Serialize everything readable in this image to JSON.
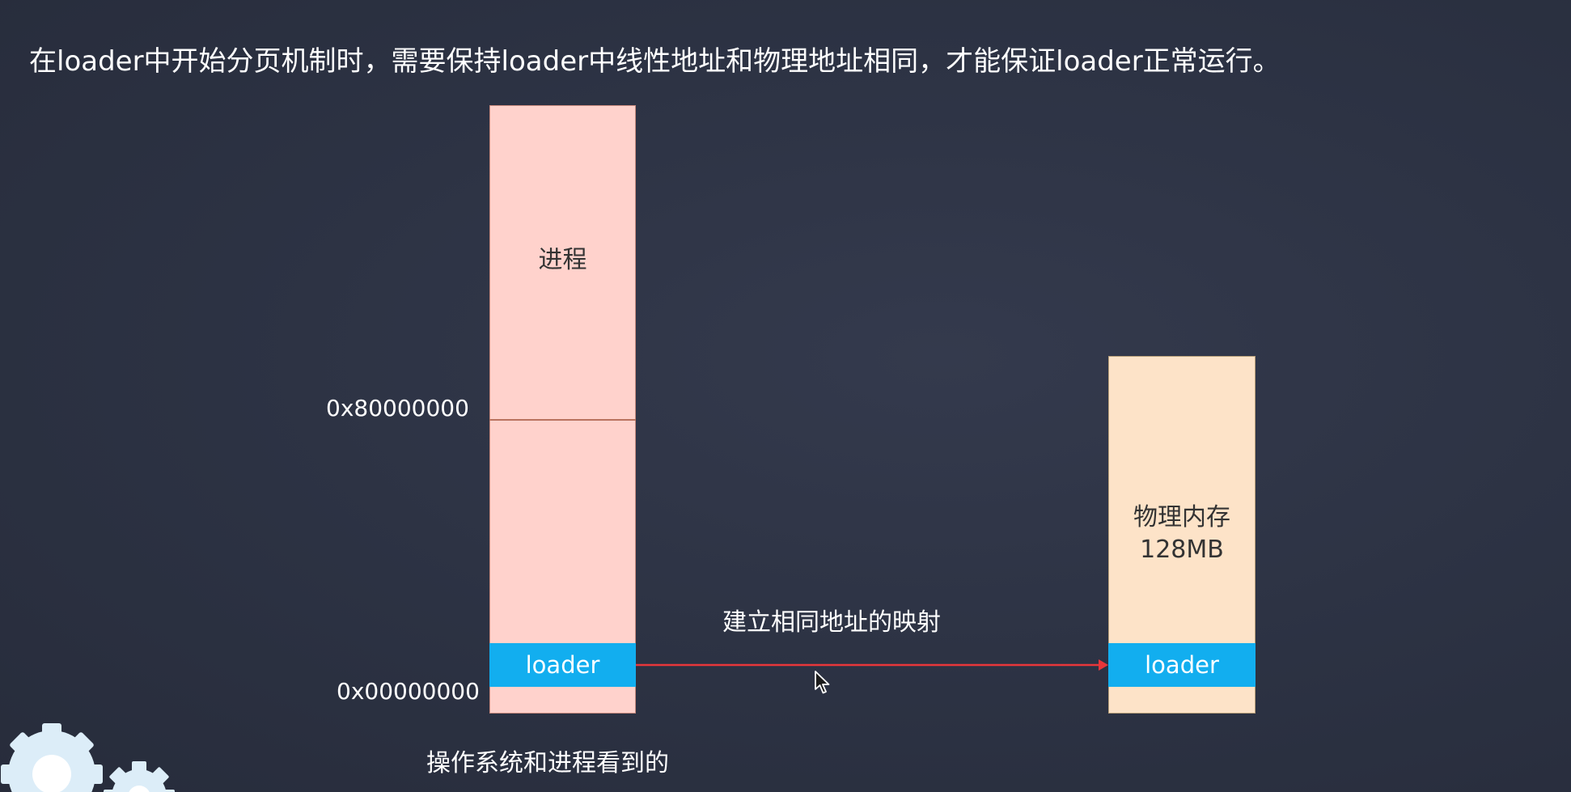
{
  "slide": {
    "title": "在loader中开始分页机制时，需要保持loader中线性地址和物理地址相同，才能保证loader正常运行。"
  },
  "process_column": {
    "label": "进程",
    "loader_label": "loader",
    "address_high": "0x80000000",
    "address_low": "0x00000000",
    "caption": "操作系统和进程看到的",
    "fill_color": "#ffd2cc"
  },
  "physical_memory": {
    "label_line1": "物理内存",
    "label_line2": "128MB",
    "loader_label": "loader",
    "fill_color": "#fde3c8"
  },
  "mapping": {
    "label": "建立相同地址的映射",
    "arrow_color": "#e8363a"
  },
  "colors": {
    "background": "#2c3243",
    "loader_bar": "#12aeef"
  },
  "icons": [
    "gear-icon",
    "cursor-icon"
  ]
}
